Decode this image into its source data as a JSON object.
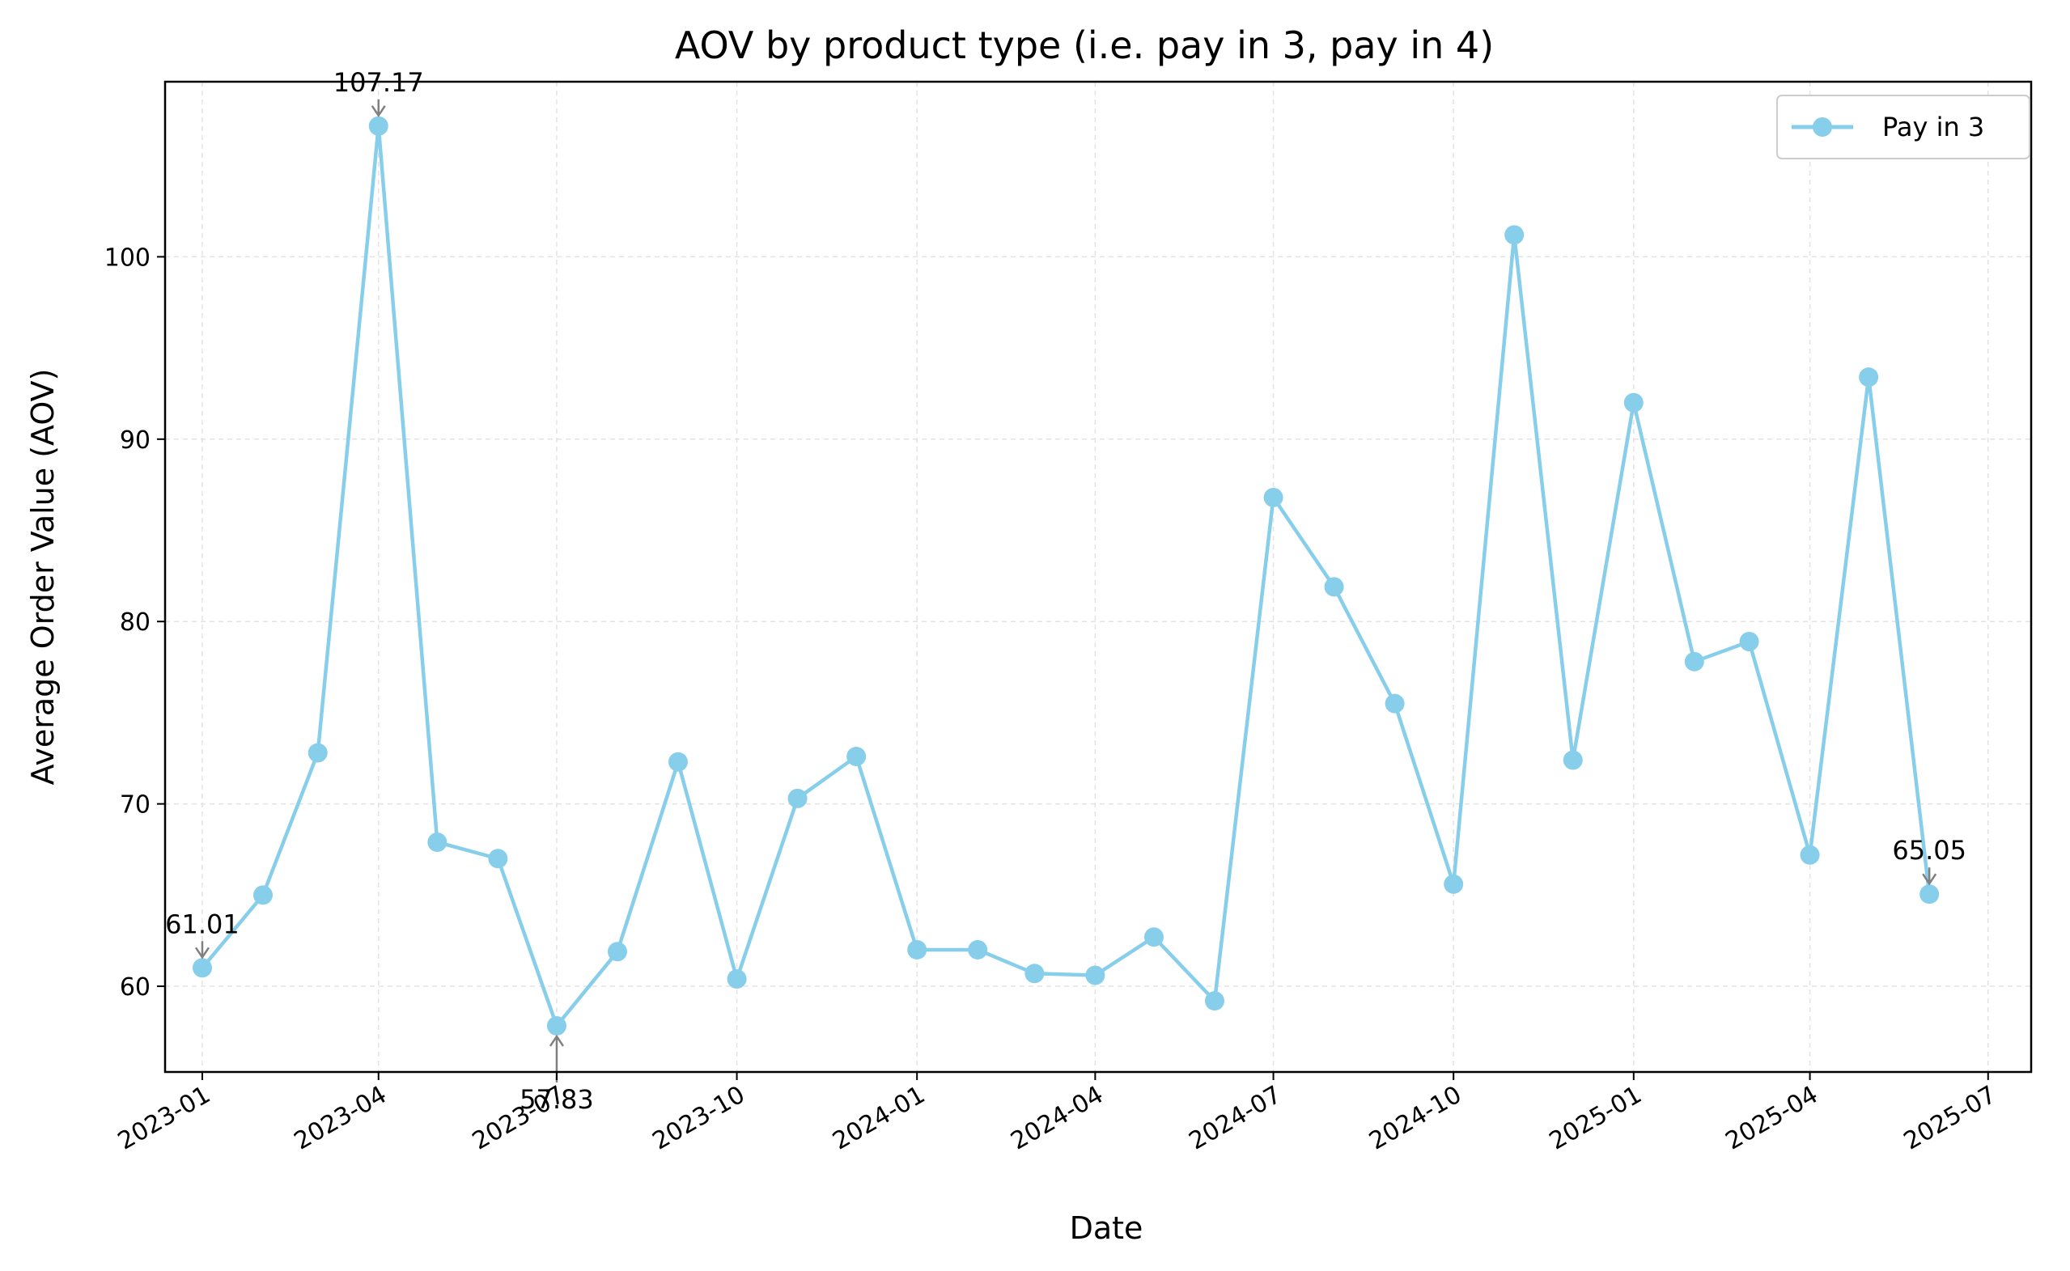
{
  "chart_data": {
    "type": "line",
    "title": "AOV by product type (i.e. pay in 3, pay in 4)",
    "xlabel": "Date",
    "ylabel": "Average Order Value (AOV)",
    "ylim": [
      55.3,
      109.6
    ],
    "xlim": [
      "2022-12-13",
      "2025-07-23"
    ],
    "y_ticks": [
      60,
      70,
      80,
      90,
      100
    ],
    "x_ticks": [
      "2023-01",
      "2023-04",
      "2023-07",
      "2023-10",
      "2024-01",
      "2024-04",
      "2024-07",
      "2024-10",
      "2025-01",
      "2025-04",
      "2025-07"
    ],
    "grid": true,
    "legend_position": "top-right",
    "colors": {
      "series": "#87CEEB",
      "annotation_arrow": "#808080",
      "grid": "#e3e3e3"
    },
    "series": [
      {
        "name": "Pay in 3",
        "x": [
          "2023-01-01",
          "2023-02-01",
          "2023-03-01",
          "2023-04-01",
          "2023-05-01",
          "2023-06-01",
          "2023-07-01",
          "2023-08-01",
          "2023-09-01",
          "2023-10-01",
          "2023-11-01",
          "2023-12-01",
          "2024-01-01",
          "2024-02-01",
          "2024-03-01",
          "2024-04-01",
          "2024-05-01",
          "2024-06-01",
          "2024-07-01",
          "2024-08-01",
          "2024-09-01",
          "2024-10-01",
          "2024-11-01",
          "2024-12-01",
          "2025-01-01",
          "2025-02-01",
          "2025-03-01",
          "2025-04-01",
          "2025-05-01",
          "2025-06-01"
        ],
        "values": [
          61.01,
          65.0,
          72.8,
          107.17,
          67.9,
          67.0,
          57.83,
          61.9,
          72.3,
          60.4,
          70.3,
          72.6,
          62.0,
          62.0,
          60.7,
          60.6,
          62.7,
          59.2,
          86.8,
          81.9,
          75.5,
          65.6,
          101.2,
          72.4,
          92.0,
          77.8,
          78.9,
          67.2,
          93.4,
          65.05
        ]
      }
    ],
    "annotations": [
      {
        "x": "2023-01-01",
        "y": 61.01,
        "label": "61.01",
        "direction": "above"
      },
      {
        "x": "2023-04-01",
        "y": 107.17,
        "label": "107.17",
        "direction": "above"
      },
      {
        "x": "2023-07-01",
        "y": 57.83,
        "label": "57.83",
        "direction": "below"
      },
      {
        "x": "2025-06-01",
        "y": 65.05,
        "label": "65.05",
        "direction": "above"
      }
    ]
  }
}
